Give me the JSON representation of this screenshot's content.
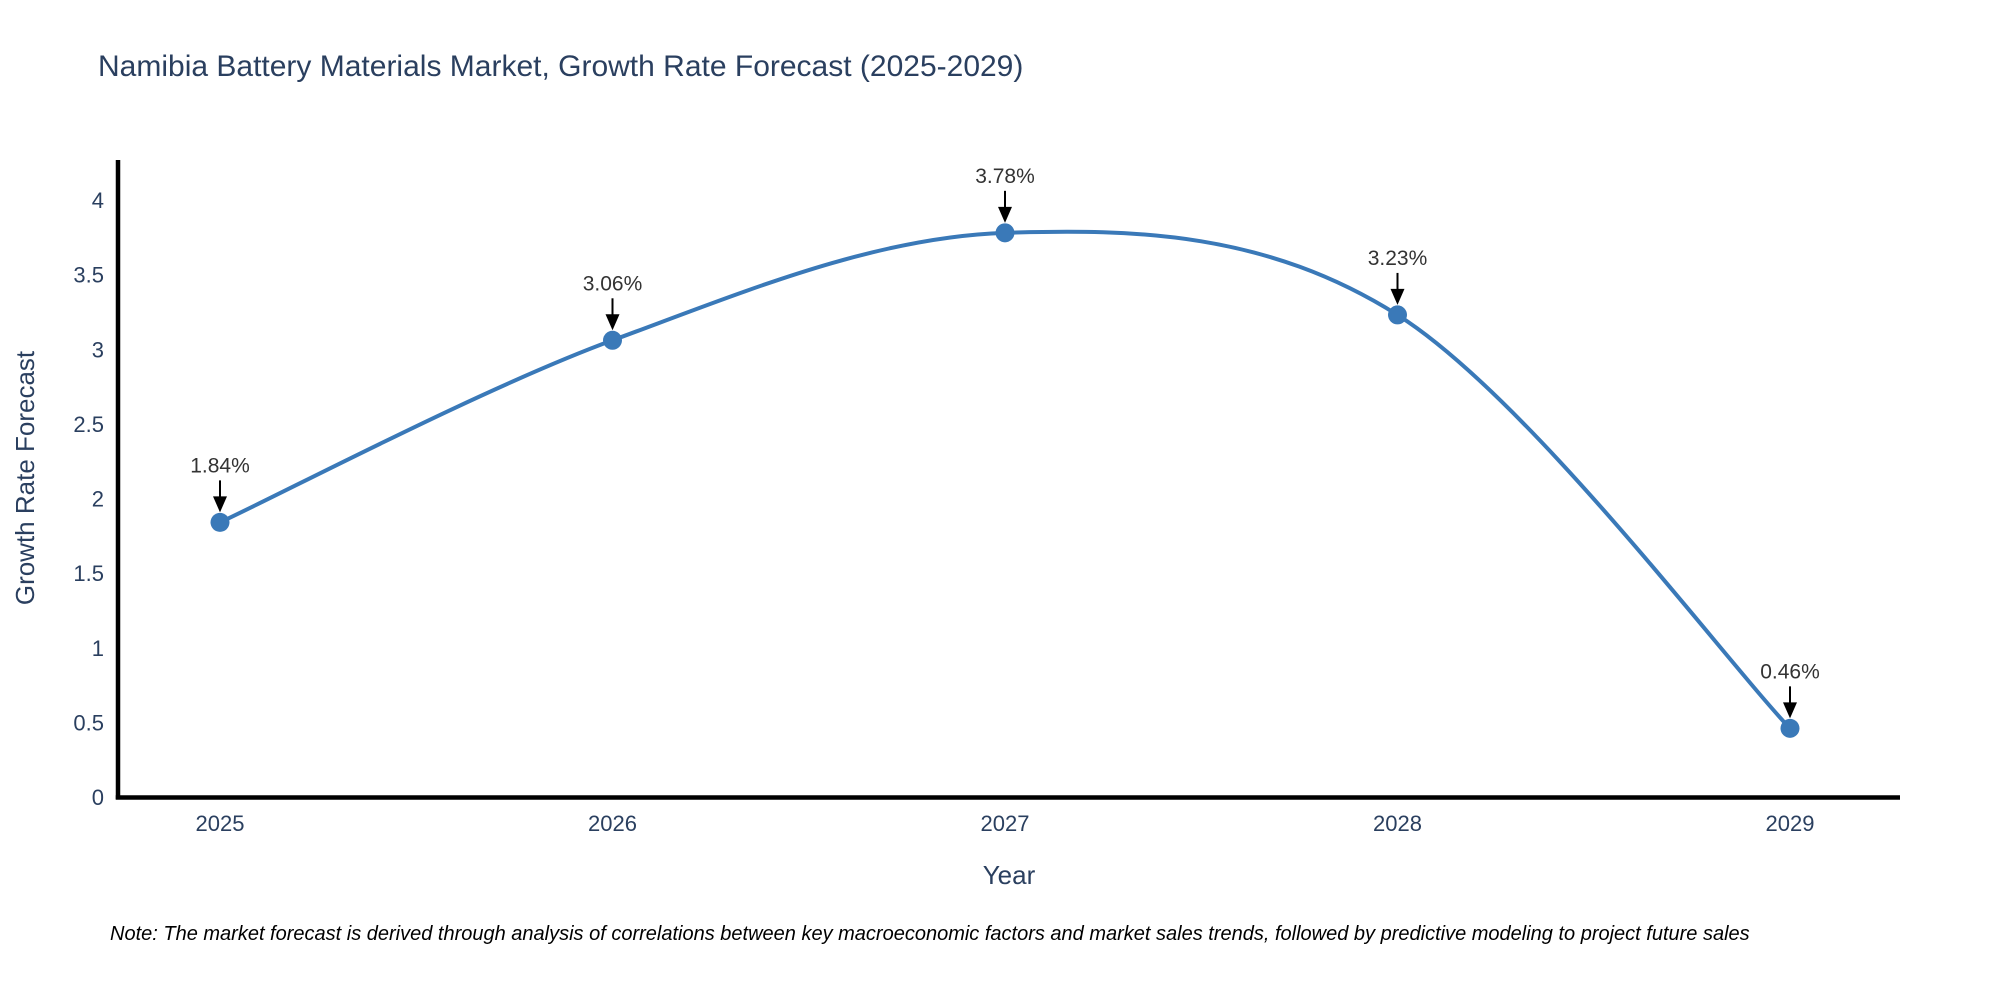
{
  "chart_data": {
    "type": "line",
    "title": "Namibia Battery Materials Market, Growth Rate Forecast (2025-2029)",
    "xlabel": "Year",
    "ylabel": "Growth Rate Forecast",
    "x": [
      "2025",
      "2026",
      "2027",
      "2028",
      "2029"
    ],
    "values": [
      1.84,
      3.06,
      3.78,
      3.23,
      0.46
    ],
    "point_labels": [
      "1.84%",
      "3.06%",
      "3.78%",
      "3.23%",
      "0.46%"
    ],
    "yticks": [
      0,
      0.5,
      1,
      1.5,
      2,
      2.5,
      3,
      3.5,
      4
    ],
    "ytick_labels": [
      "0",
      "0.5",
      "1",
      "1.5",
      "2",
      "2.5",
      "3",
      "3.5",
      "4"
    ],
    "ylim": [
      0,
      4.28
    ],
    "line_shape": "spline",
    "grid": false,
    "legend": "none",
    "markers": true,
    "annotation_style": "value-label-above-point-with-down-arrow",
    "note": "Note: The market forecast is derived through analysis of correlations between key macroeconomic factors and market sales trends, followed by predictive modeling to project future sales",
    "colors": {
      "line": "#3a79b8",
      "marker": "#3a79b8",
      "axis": "#000000",
      "title_text": "#2a3f5f",
      "tick_text": "#2a3f5f",
      "axis_title_text": "#2a3f5f",
      "annotation_text": "#333333",
      "arrow": "#000000",
      "note_text": "#000000",
      "background": "#ffffff"
    }
  }
}
